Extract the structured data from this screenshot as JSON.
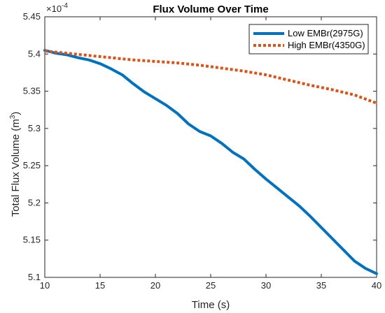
{
  "chart_data": {
    "type": "line",
    "title": "Flux Volume Over Time",
    "xlabel": "Time (s)",
    "ylabel": "Total Flux Volume (m",
    "ylabel_sup": "3",
    "ylabel_tail": ")",
    "y_exponent_base": "×10",
    "y_exponent": "-4",
    "xlim": [
      10,
      40
    ],
    "ylim": [
      5.1,
      5.45
    ],
    "x_ticks": [
      "10",
      "15",
      "20",
      "25",
      "30",
      "35",
      "40"
    ],
    "y_ticks": [
      "5.1",
      "5.15",
      "5.2",
      "5.25",
      "5.3",
      "5.35",
      "5.4",
      "5.45"
    ],
    "grid": false,
    "legend_position": "top-right",
    "series": [
      {
        "name": "Low EMBr(2975G)",
        "color": "#0072BD",
        "style": "solid",
        "x": [
          10,
          11,
          12,
          13,
          14,
          15,
          16,
          17,
          18,
          19,
          20,
          21,
          22,
          23,
          24,
          25,
          26,
          27,
          28,
          29,
          30,
          31,
          32,
          33,
          34,
          35,
          36,
          37,
          38,
          39,
          40
        ],
        "y": [
          5.405,
          5.401,
          5.399,
          5.395,
          5.392,
          5.387,
          5.38,
          5.372,
          5.36,
          5.349,
          5.34,
          5.331,
          5.32,
          5.306,
          5.296,
          5.29,
          5.28,
          5.268,
          5.259,
          5.245,
          5.232,
          5.22,
          5.208,
          5.196,
          5.182,
          5.167,
          5.152,
          5.137,
          5.122,
          5.112,
          5.105
        ]
      },
      {
        "name": "High EMBr(4350G)",
        "color": "#D95319",
        "style": "dotted",
        "x": [
          10,
          12,
          14,
          16,
          18,
          20,
          22,
          24,
          26,
          28,
          30,
          32,
          34,
          36,
          38,
          40
        ],
        "y": [
          5.404,
          5.401,
          5.398,
          5.395,
          5.392,
          5.39,
          5.388,
          5.385,
          5.381,
          5.377,
          5.372,
          5.365,
          5.358,
          5.352,
          5.345,
          5.334
        ]
      }
    ]
  }
}
